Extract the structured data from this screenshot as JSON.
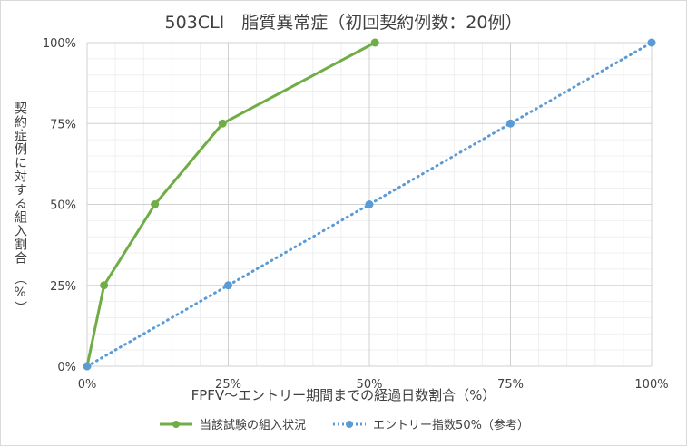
{
  "chart_data": {
    "type": "line",
    "title": "503CLI　脂質異常症（初回契約例数：20例）",
    "xlabel": "FPFV～エントリー期間までの経過日数割合（%）",
    "ylabel": "契約症例に対する組入割合　（%）",
    "xlim": [
      0,
      100
    ],
    "ylim": [
      0,
      100
    ],
    "x_ticks": [
      "0%",
      "25%",
      "50%",
      "75%",
      "100%"
    ],
    "y_ticks": [
      "0%",
      "25%",
      "50%",
      "75%",
      "100%"
    ],
    "grid": true,
    "legend_position": "bottom",
    "series": [
      {
        "name": "当該試験の組入状況",
        "color": "#70ad47",
        "style": "solid",
        "points": [
          [
            0,
            0
          ],
          [
            3,
            25
          ],
          [
            12,
            50
          ],
          [
            24,
            75
          ],
          [
            51,
            100
          ]
        ]
      },
      {
        "name": "エントリー指数50%（参考）",
        "color": "#5b9bd5",
        "style": "dotted",
        "points": [
          [
            0,
            0
          ],
          [
            25,
            25
          ],
          [
            50,
            50
          ],
          [
            75,
            75
          ],
          [
            100,
            100
          ]
        ]
      }
    ]
  }
}
